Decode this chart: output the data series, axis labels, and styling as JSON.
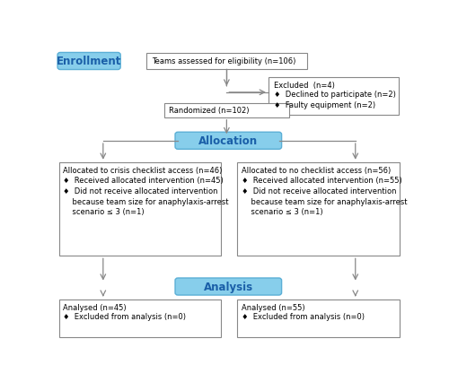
{
  "background_color": "#ffffff",
  "enrollment_label": "Enrollment",
  "allocation_label": "Allocation",
  "analysis_label": "Analysis",
  "label_bg": "#87CEEB",
  "label_text_color": "#1a5fa8",
  "box_edge_color": "#888888",
  "arrow_color": "#888888",
  "eligibility_text": "Teams assessed for eligibility (n=106)",
  "excluded_title": "Excluded  (n=4)",
  "excluded_item1": "♦  Declined to participate (n=2)",
  "excluded_item2": "♦  Faulty equipment (n=2)",
  "randomized_text": "Randomized (n=102)",
  "left_alloc_title": "Allocated to crisis checklist access (n=46)",
  "left_alloc_item1": "♦  Received allocated intervention (n=45)",
  "left_alloc_item2": "♦  Did not receive allocated intervention\n    because team size for anaphylaxis-arrest\n    scenario ≤ 3 (n=1)",
  "right_alloc_title": "Allocated to no checklist access (n=56)",
  "right_alloc_item1": "♦  Received allocated intervention (n=55)",
  "right_alloc_item2": "♦  Did not receive allocated intervention\n    because team size for anaphylaxis-arrest\n    scenario ≤ 3 (n=1)",
  "left_analysis_title": "Analysed (n=45)",
  "left_analysis_item1": "♦  Excluded from analysis (n=0)",
  "right_analysis_title": "Analysed (n=55)",
  "right_analysis_item1": "♦  Excluded from analysis (n=0)",
  "font_size": 6.0,
  "label_font_size": 8.5
}
